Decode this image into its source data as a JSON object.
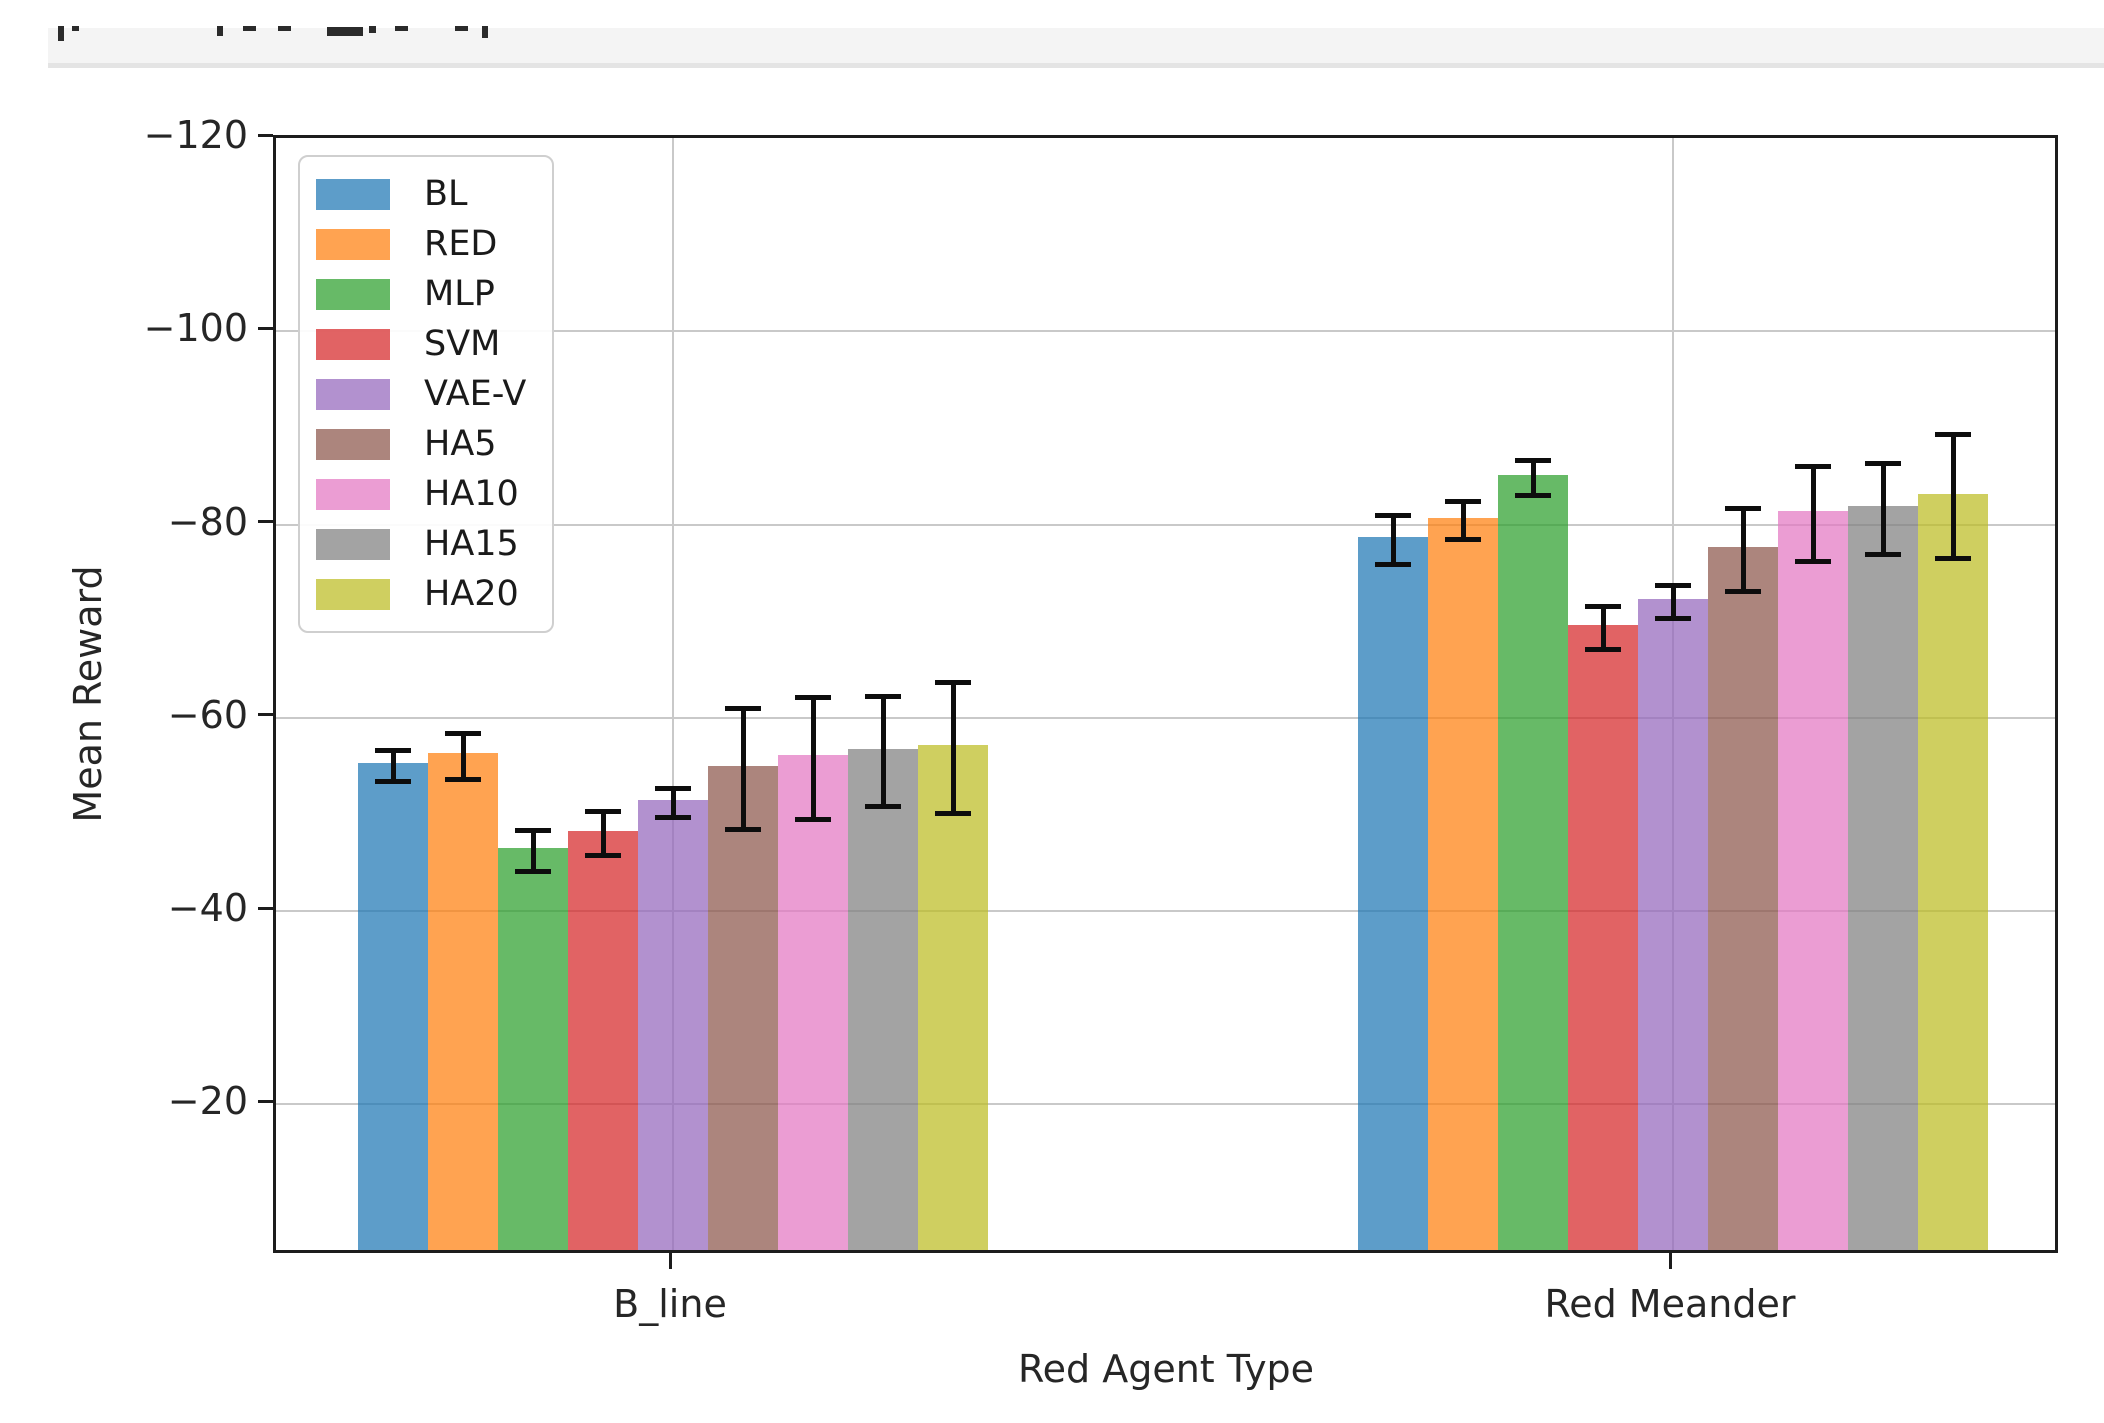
{
  "top_bar": {
    "note": "partially clipped line of text; only bottoms of glyphs visible"
  },
  "chart_data": {
    "type": "bar",
    "title": "",
    "xlabel": "Red Agent Type",
    "ylabel": "Mean Reward",
    "categories": [
      "B_line",
      "Red Meander"
    ],
    "series": [
      {
        "name": "BL",
        "color": "#1f77b4",
        "values": [
          -55.0,
          -78.4
        ],
        "errors": [
          1.6,
          2.5
        ]
      },
      {
        "name": "RED",
        "color": "#ff7f0e",
        "values": [
          -56.0,
          -80.4
        ],
        "errors": [
          2.4,
          2.0
        ]
      },
      {
        "name": "MLP",
        "color": "#2ca02c",
        "values": [
          -46.2,
          -84.8
        ],
        "errors": [
          2.1,
          1.8
        ]
      },
      {
        "name": "SVM",
        "color": "#d62728",
        "values": [
          -48.0,
          -69.3
        ],
        "errors": [
          2.3,
          2.2
        ]
      },
      {
        "name": "VAE-V",
        "color": "#9467bd",
        "values": [
          -51.2,
          -72.0
        ],
        "errors": [
          1.5,
          1.7
        ]
      },
      {
        "name": "HA5",
        "color": "#8c564b",
        "values": [
          -54.7,
          -77.4
        ],
        "errors": [
          6.3,
          4.3
        ]
      },
      {
        "name": "HA10",
        "color": "#e377c2",
        "values": [
          -55.8,
          -81.1
        ],
        "errors": [
          6.3,
          4.9
        ]
      },
      {
        "name": "HA15",
        "color": "#7f7f7f",
        "values": [
          -56.5,
          -81.6
        ],
        "errors": [
          5.7,
          4.7
        ]
      },
      {
        "name": "HA20",
        "color": "#bcbd22",
        "values": [
          -56.9,
          -82.9
        ],
        "errors": [
          6.8,
          6.4
        ]
      }
    ],
    "bar_alpha": 0.72,
    "error_bar_color": "#0d0d0d",
    "axis_inverted": true,
    "ylim_top": -120,
    "ylim_bottom": -4.3,
    "y_ticks": [
      "−120",
      "−100",
      "−80",
      "−60",
      "−40",
      "−20"
    ],
    "y_tick_values": [
      -120,
      -100,
      -80,
      -60,
      -40,
      -20
    ],
    "grid": true,
    "legend_position": "upper left",
    "spine_color": "#1c1c1c",
    "grid_color": "#c9c9c9"
  }
}
